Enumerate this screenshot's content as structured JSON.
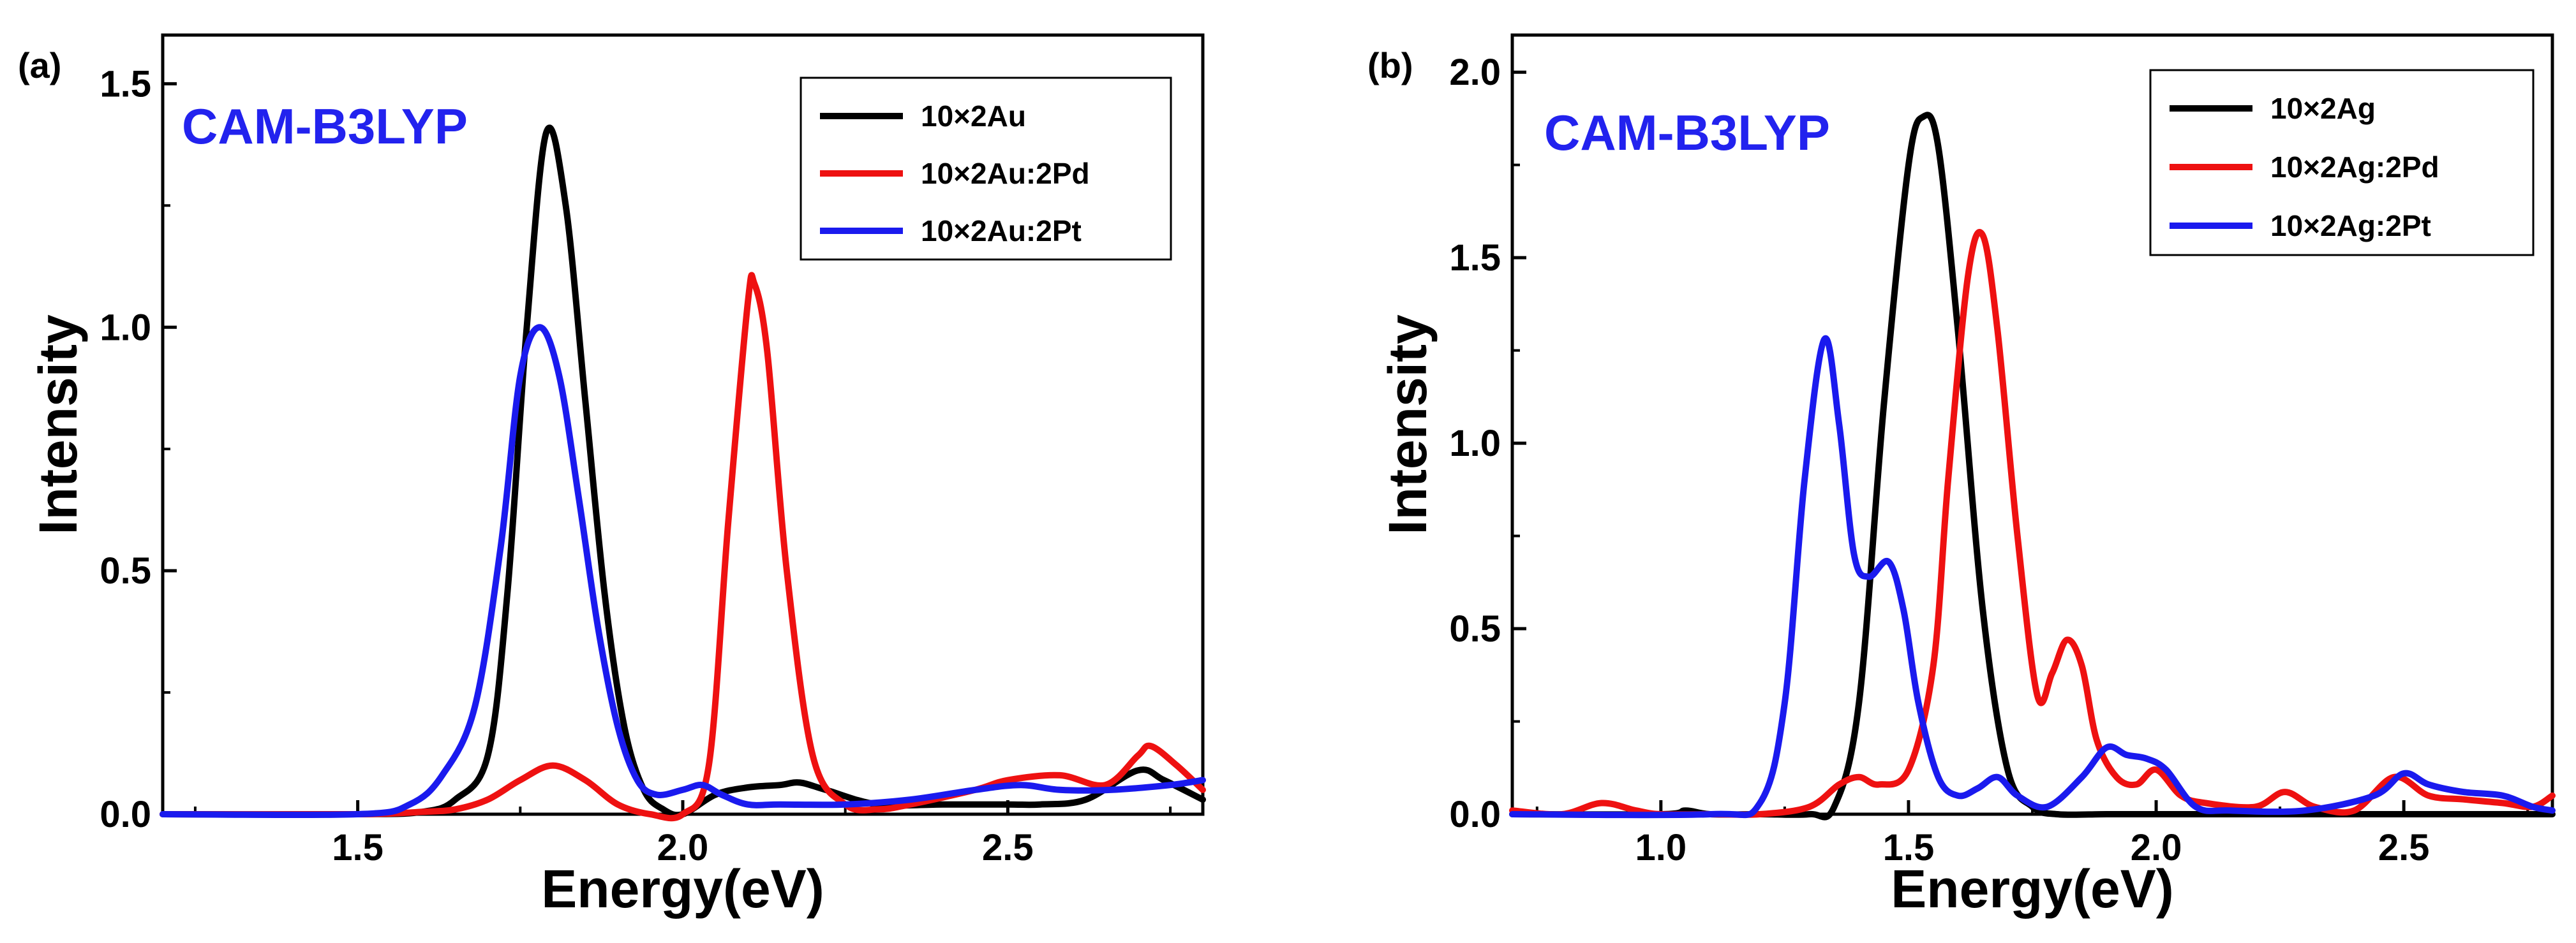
{
  "chart_data": [
    {
      "type": "line",
      "panel_label": "(a)",
      "method_label": "CAM-B3LYP",
      "method_color": "#2222ee",
      "xlabel": "Energy(eV)",
      "ylabel": "Intensity",
      "xlim": [
        1.2,
        2.8
      ],
      "ylim": [
        0,
        1.6
      ],
      "xticks": [
        1.5,
        2.0,
        2.5
      ],
      "xtick_labels": [
        "1.5",
        "2.0",
        "2.5"
      ],
      "yticks": [
        0.0,
        0.5,
        1.0,
        1.5
      ],
      "ytick_labels": [
        "0.0",
        "0.5",
        "1.0",
        "1.5"
      ],
      "legend_position": "top-right",
      "series": [
        {
          "name": "10×2Au",
          "color": "#000000",
          "x": [
            1.2,
            1.5,
            1.6,
            1.65,
            1.7,
            1.73,
            1.76,
            1.79,
            1.82,
            1.85,
            1.88,
            1.91,
            1.94,
            1.97,
            2.0,
            2.05,
            2.1,
            2.15,
            2.18,
            2.22,
            2.3,
            2.4,
            2.5,
            2.55,
            2.62,
            2.7,
            2.74,
            2.8
          ],
          "y": [
            0.0,
            0.0,
            0.005,
            0.03,
            0.12,
            0.45,
            1.0,
            1.4,
            1.25,
            0.85,
            0.45,
            0.18,
            0.05,
            0.01,
            0.0,
            0.04,
            0.055,
            0.06,
            0.065,
            0.05,
            0.02,
            0.02,
            0.02,
            0.02,
            0.03,
            0.09,
            0.07,
            0.03
          ]
        },
        {
          "name": "10×2Au:2Pd",
          "color": "#ee1111",
          "x": [
            1.2,
            1.5,
            1.6,
            1.65,
            1.7,
            1.75,
            1.8,
            1.85,
            1.9,
            1.95,
            2.0,
            2.04,
            2.07,
            2.1,
            2.11,
            2.13,
            2.16,
            2.2,
            2.25,
            2.3,
            2.35,
            2.45,
            2.5,
            2.58,
            2.65,
            2.7,
            2.72,
            2.76,
            2.8
          ],
          "y": [
            0.0,
            0.0,
            0.005,
            0.01,
            0.03,
            0.07,
            0.1,
            0.07,
            0.02,
            0.0,
            0.0,
            0.1,
            0.6,
            1.05,
            1.09,
            0.95,
            0.5,
            0.12,
            0.02,
            0.01,
            0.02,
            0.05,
            0.07,
            0.08,
            0.06,
            0.12,
            0.14,
            0.1,
            0.05
          ]
        },
        {
          "name": "10×2Au:2Pt",
          "color": "#1a1aee",
          "x": [
            1.2,
            1.5,
            1.58,
            1.63,
            1.68,
            1.72,
            1.75,
            1.78,
            1.81,
            1.84,
            1.87,
            1.9,
            1.93,
            1.96,
            2.0,
            2.03,
            2.06,
            2.1,
            2.15,
            2.25,
            2.35,
            2.45,
            2.52,
            2.58,
            2.66,
            2.75,
            2.8
          ],
          "y": [
            0.0,
            0.0,
            0.02,
            0.08,
            0.22,
            0.55,
            0.9,
            1.0,
            0.9,
            0.65,
            0.38,
            0.18,
            0.07,
            0.04,
            0.05,
            0.06,
            0.04,
            0.02,
            0.02,
            0.02,
            0.03,
            0.05,
            0.06,
            0.05,
            0.05,
            0.06,
            0.07
          ]
        }
      ],
      "legend": [
        "10×2Au",
        "10×2Au:2Pd",
        "10×2Au:2Pt"
      ]
    },
    {
      "type": "line",
      "panel_label": "(b)",
      "method_label": "CAM-B3LYP",
      "method_color": "#2222ee",
      "xlabel": "Energy(eV)",
      "ylabel": "Intensity",
      "xlim": [
        0.7,
        2.8
      ],
      "ylim": [
        0,
        2.1
      ],
      "xticks": [
        1.0,
        1.5,
        2.0,
        2.5
      ],
      "xtick_labels": [
        "1.0",
        "1.5",
        "2.0",
        "2.5"
      ],
      "yticks": [
        0.0,
        0.5,
        1.0,
        1.5,
        2.0
      ],
      "ytick_labels": [
        "0.0",
        "0.5",
        "1.0",
        "1.5",
        "2.0"
      ],
      "legend_position": "top-right",
      "series": [
        {
          "name": "10×2Ag",
          "color": "#000000",
          "x": [
            0.7,
            1.0,
            1.05,
            1.1,
            1.2,
            1.3,
            1.35,
            1.4,
            1.45,
            1.5,
            1.53,
            1.56,
            1.6,
            1.65,
            1.7,
            1.75,
            1.8,
            1.9,
            2.0,
            2.5,
            2.8
          ],
          "y": [
            0.0,
            0.0,
            0.01,
            0.0,
            0.0,
            0.0,
            0.02,
            0.3,
            1.1,
            1.75,
            1.88,
            1.8,
            1.3,
            0.55,
            0.12,
            0.02,
            0.0,
            0.0,
            0.0,
            0.0,
            0.0
          ]
        },
        {
          "name": "10×2Ag:2Pd",
          "color": "#ee1111",
          "x": [
            0.7,
            0.8,
            0.88,
            0.95,
            1.0,
            1.1,
            1.2,
            1.3,
            1.36,
            1.4,
            1.44,
            1.5,
            1.55,
            1.58,
            1.62,
            1.65,
            1.68,
            1.72,
            1.76,
            1.79,
            1.82,
            1.85,
            1.88,
            1.92,
            1.96,
            2.0,
            2.05,
            2.1,
            2.2,
            2.26,
            2.32,
            2.4,
            2.48,
            2.55,
            2.62,
            2.7,
            2.76,
            2.8
          ],
          "y": [
            0.01,
            0.0,
            0.03,
            0.01,
            0.0,
            0.0,
            0.0,
            0.02,
            0.08,
            0.1,
            0.08,
            0.12,
            0.4,
            0.9,
            1.45,
            1.56,
            1.3,
            0.75,
            0.32,
            0.38,
            0.47,
            0.4,
            0.2,
            0.1,
            0.08,
            0.12,
            0.05,
            0.03,
            0.02,
            0.06,
            0.02,
            0.01,
            0.1,
            0.05,
            0.04,
            0.03,
            0.02,
            0.05
          ]
        },
        {
          "name": "10×2Ag:2Pt",
          "color": "#1a1aee",
          "x": [
            0.7,
            1.1,
            1.2,
            1.25,
            1.29,
            1.33,
            1.36,
            1.39,
            1.42,
            1.46,
            1.49,
            1.52,
            1.56,
            1.6,
            1.64,
            1.68,
            1.72,
            1.78,
            1.85,
            1.9,
            1.94,
            1.98,
            2.02,
            2.08,
            2.15,
            2.3,
            2.44,
            2.5,
            2.55,
            2.62,
            2.7,
            2.76,
            2.8
          ],
          "y": [
            0.0,
            0.0,
            0.03,
            0.3,
            0.9,
            1.28,
            1.05,
            0.7,
            0.64,
            0.68,
            0.55,
            0.3,
            0.1,
            0.05,
            0.07,
            0.1,
            0.05,
            0.02,
            0.1,
            0.18,
            0.16,
            0.15,
            0.12,
            0.02,
            0.01,
            0.01,
            0.05,
            0.11,
            0.08,
            0.06,
            0.05,
            0.02,
            0.01
          ]
        }
      ],
      "legend": [
        "10×2Ag",
        "10×2Ag:2Pd",
        "10×2Ag:2Pt"
      ]
    }
  ]
}
